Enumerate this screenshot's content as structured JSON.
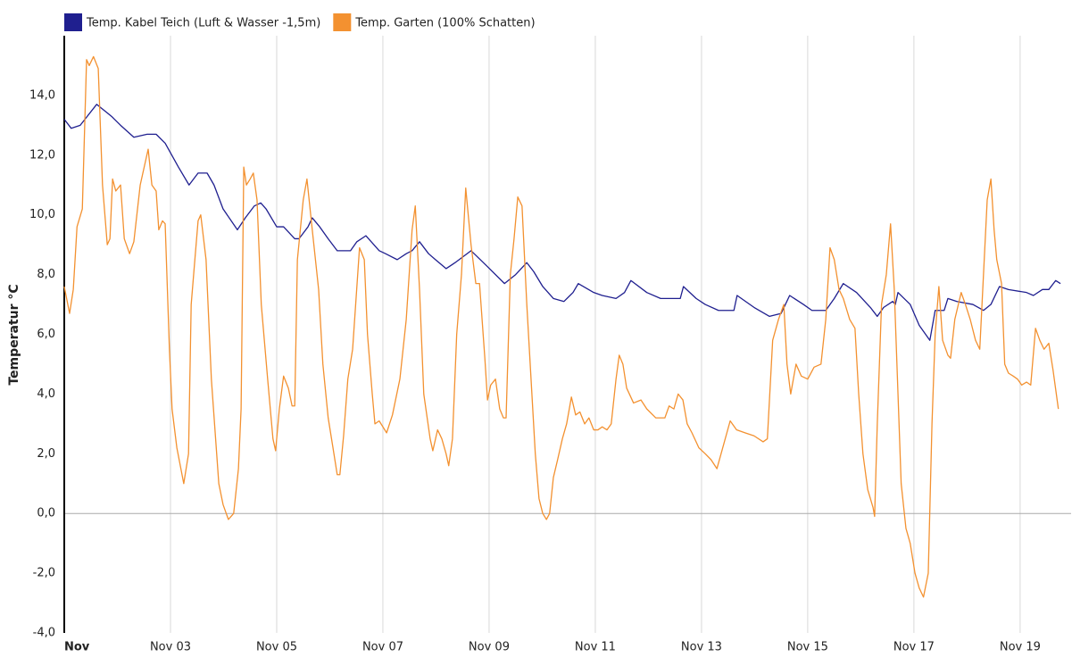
{
  "chart_data": {
    "type": "line",
    "y_label": "Temperatur °C",
    "legend": "top-left",
    "grid": "x",
    "xlim": [
      1,
      19.96
    ],
    "xticks": [
      {
        "value": 1,
        "label": "Nov"
      },
      {
        "value": 3,
        "label": "Nov 03"
      },
      {
        "value": 5,
        "label": "Nov 05"
      },
      {
        "value": 7,
        "label": "Nov 07"
      },
      {
        "value": 9,
        "label": "Nov 09"
      },
      {
        "value": 11,
        "label": "Nov 11"
      },
      {
        "value": 13,
        "label": "Nov 13"
      },
      {
        "value": 15,
        "label": "Nov 15"
      },
      {
        "value": 17,
        "label": "Nov 17"
      },
      {
        "value": 19,
        "label": "Nov 19"
      }
    ],
    "ylim": [
      -4,
      16
    ],
    "yticks": [
      {
        "value": -4,
        "label": "-4,0"
      },
      {
        "value": -2,
        "label": "-2,0"
      },
      {
        "value": 0,
        "label": "0,0"
      },
      {
        "value": 2,
        "label": "2,0"
      },
      {
        "value": 4,
        "label": "4,0"
      },
      {
        "value": 6,
        "label": "6,0"
      },
      {
        "value": 8,
        "label": "8,0"
      },
      {
        "value": 10,
        "label": "10,0"
      },
      {
        "value": 12,
        "label": "12,0"
      },
      {
        "value": 14,
        "label": "14,0"
      }
    ],
    "series": [
      {
        "name": "Temp. Kabel Teich (Luft & Wasser -1,5m)",
        "color": "#1f1f8f",
        "x": [
          1.0,
          1.13,
          1.3,
          1.61,
          1.89,
          2.06,
          2.31,
          2.56,
          2.73,
          2.9,
          3.15,
          3.35,
          3.52,
          3.69,
          3.82,
          3.99,
          4.26,
          4.41,
          4.58,
          4.7,
          4.8,
          5.0,
          5.13,
          5.34,
          5.42,
          5.59,
          5.67,
          5.81,
          5.97,
          6.14,
          6.39,
          6.51,
          6.68,
          6.93,
          7.05,
          7.27,
          7.44,
          7.55,
          7.69,
          7.86,
          7.99,
          8.19,
          8.36,
          8.66,
          8.95,
          9.29,
          9.5,
          9.71,
          9.84,
          10.01,
          10.21,
          10.41,
          10.58,
          10.68,
          10.97,
          11.13,
          11.39,
          11.55,
          11.67,
          11.97,
          12.23,
          12.6,
          12.66,
          12.9,
          13.07,
          13.32,
          13.61,
          13.67,
          13.99,
          14.28,
          14.5,
          14.66,
          14.92,
          15.08,
          15.34,
          15.5,
          15.67,
          15.92,
          16.18,
          16.31,
          16.43,
          16.6,
          16.65,
          16.7,
          16.93,
          17.1,
          17.3,
          17.4,
          17.57,
          17.64,
          17.81,
          18.11,
          18.31,
          18.45,
          18.61,
          18.78,
          19.12,
          19.25,
          19.42,
          19.54,
          19.67,
          19.76
        ],
        "values": [
          13.2,
          12.9,
          13.0,
          13.7,
          13.3,
          13.0,
          12.6,
          12.7,
          12.7,
          12.4,
          11.6,
          11.0,
          11.4,
          11.4,
          11.0,
          10.2,
          9.5,
          9.9,
          10.3,
          10.4,
          10.2,
          9.6,
          9.6,
          9.2,
          9.2,
          9.6,
          9.9,
          9.6,
          9.2,
          8.8,
          8.8,
          9.1,
          9.3,
          8.8,
          8.7,
          8.5,
          8.7,
          8.8,
          9.1,
          8.7,
          8.5,
          8.2,
          8.4,
          8.8,
          8.3,
          7.7,
          8.0,
          8.4,
          8.1,
          7.6,
          7.2,
          7.1,
          7.4,
          7.7,
          7.4,
          7.3,
          7.2,
          7.4,
          7.8,
          7.4,
          7.2,
          7.2,
          7.6,
          7.2,
          7.0,
          6.8,
          6.8,
          7.3,
          6.9,
          6.6,
          6.7,
          7.3,
          7.0,
          6.8,
          6.8,
          7.2,
          7.7,
          7.4,
          6.9,
          6.6,
          6.9,
          7.1,
          7.0,
          7.4,
          7.0,
          6.3,
          5.8,
          6.8,
          6.8,
          7.2,
          7.1,
          7.0,
          6.8,
          7.0,
          7.6,
          7.5,
          7.4,
          7.3,
          7.5,
          7.5,
          7.8,
          7.7
        ]
      },
      {
        "name": "Temp. Garten (100% Schatten)",
        "color": "#f39130",
        "x": [
          1.0,
          1.1,
          1.17,
          1.24,
          1.34,
          1.42,
          1.47,
          1.55,
          1.64,
          1.72,
          1.81,
          1.86,
          1.91,
          1.97,
          2.06,
          2.13,
          2.23,
          2.31,
          2.43,
          2.58,
          2.65,
          2.73,
          2.78,
          2.85,
          2.9,
          2.98,
          3.03,
          3.12,
          3.25,
          3.34,
          3.39,
          3.45,
          3.52,
          3.57,
          3.67,
          3.77,
          3.91,
          3.99,
          4.09,
          4.19,
          4.28,
          4.33,
          4.38,
          4.43,
          4.5,
          4.56,
          4.63,
          4.71,
          4.83,
          4.93,
          4.98,
          5.05,
          5.13,
          5.22,
          5.29,
          5.34,
          5.39,
          5.5,
          5.57,
          5.67,
          5.79,
          5.87,
          5.97,
          6.06,
          6.14,
          6.19,
          6.26,
          6.34,
          6.43,
          6.56,
          6.65,
          6.71,
          6.8,
          6.85,
          6.93,
          7.07,
          7.18,
          7.32,
          7.44,
          7.55,
          7.61,
          7.69,
          7.77,
          7.89,
          7.94,
          8.03,
          8.11,
          8.19,
          8.24,
          8.31,
          8.39,
          8.48,
          8.56,
          8.66,
          8.75,
          8.82,
          8.92,
          8.97,
          9.03,
          9.12,
          9.2,
          9.27,
          9.32,
          9.4,
          9.47,
          9.54,
          9.62,
          9.71,
          9.79,
          9.87,
          9.94,
          10.01,
          10.08,
          10.14,
          10.21,
          10.29,
          10.38,
          10.46,
          10.55,
          10.63,
          10.71,
          10.8,
          10.88,
          10.97,
          11.05,
          11.13,
          11.22,
          11.3,
          11.39,
          11.45,
          11.52,
          11.59,
          11.72,
          11.86,
          11.97,
          12.14,
          12.31,
          12.39,
          12.48,
          12.56,
          12.65,
          12.73,
          12.82,
          12.95,
          13.07,
          13.18,
          13.29,
          13.4,
          13.54,
          13.66,
          13.82,
          13.99,
          14.16,
          14.24,
          14.34,
          14.45,
          14.55,
          14.61,
          14.68,
          14.78,
          14.88,
          15.0,
          15.12,
          15.25,
          15.34,
          15.42,
          15.5,
          15.59,
          15.67,
          15.79,
          15.89,
          15.96,
          16.04,
          16.13,
          16.23,
          16.26,
          16.31,
          16.39,
          16.48,
          16.56,
          16.63,
          16.7,
          16.76,
          16.85,
          16.93,
          17.02,
          17.1,
          17.18,
          17.27,
          17.34,
          17.4,
          17.47,
          17.54,
          17.64,
          17.69,
          17.77,
          17.89,
          17.97,
          18.06,
          18.16,
          18.24,
          18.31,
          18.38,
          18.45,
          18.51,
          18.56,
          18.65,
          18.71,
          18.78,
          18.87,
          18.95,
          19.03,
          19.12,
          19.2,
          19.29,
          19.37,
          19.45,
          19.54,
          19.62,
          19.72
        ],
        "values": [
          7.6,
          6.7,
          7.5,
          9.6,
          10.2,
          15.2,
          15.0,
          15.3,
          14.9,
          11.0,
          9.0,
          9.2,
          11.2,
          10.8,
          11.0,
          9.2,
          8.7,
          9.1,
          11.0,
          12.2,
          11.0,
          10.8,
          9.5,
          9.8,
          9.7,
          5.5,
          3.5,
          2.2,
          1.0,
          2.0,
          7.0,
          8.3,
          9.8,
          10.0,
          8.5,
          4.5,
          1.0,
          0.3,
          -0.2,
          0.0,
          1.5,
          3.5,
          11.6,
          11.0,
          11.2,
          11.4,
          10.5,
          7.0,
          4.5,
          2.5,
          2.1,
          3.5,
          4.6,
          4.2,
          3.6,
          3.6,
          8.5,
          10.5,
          11.2,
          9.5,
          7.5,
          5.0,
          3.2,
          2.2,
          1.3,
          1.3,
          2.6,
          4.5,
          5.5,
          8.9,
          8.5,
          6.0,
          4.0,
          3.0,
          3.1,
          2.7,
          3.3,
          4.5,
          6.5,
          9.5,
          10.3,
          7.5,
          4.0,
          2.5,
          2.1,
          2.8,
          2.5,
          2.0,
          1.6,
          2.5,
          6.0,
          8.0,
          10.9,
          9.0,
          7.7,
          7.7,
          5.2,
          3.8,
          4.3,
          4.5,
          3.5,
          3.2,
          3.2,
          8.0,
          9.2,
          10.6,
          10.3,
          7.0,
          4.5,
          2.0,
          0.5,
          0.0,
          -0.2,
          0.0,
          1.2,
          1.8,
          2.5,
          3.0,
          3.9,
          3.3,
          3.4,
          3.0,
          3.2,
          2.8,
          2.8,
          2.9,
          2.8,
          3.0,
          4.5,
          5.3,
          5.0,
          4.2,
          3.7,
          3.8,
          3.5,
          3.2,
          3.2,
          3.6,
          3.5,
          4.0,
          3.8,
          3.0,
          2.7,
          2.2,
          2.0,
          1.8,
          1.5,
          2.2,
          3.1,
          2.8,
          2.7,
          2.6,
          2.4,
          2.5,
          5.8,
          6.5,
          7.0,
          5.0,
          4.0,
          5.0,
          4.6,
          4.5,
          4.9,
          5.0,
          6.5,
          8.9,
          8.5,
          7.5,
          7.2,
          6.5,
          6.2,
          4.0,
          2.0,
          0.8,
          0.2,
          -0.1,
          3.0,
          7.0,
          8.0,
          9.7,
          7.5,
          4.0,
          1.0,
          -0.5,
          -1.0,
          -2.0,
          -2.5,
          -2.8,
          -2.0,
          3.0,
          6.0,
          7.6,
          5.8,
          5.3,
          5.2,
          6.5,
          7.4,
          7.0,
          6.5,
          5.8,
          5.5,
          8.0,
          10.5,
          11.2,
          9.5,
          8.5,
          7.7,
          5.0,
          4.7,
          4.6,
          4.5,
          4.3,
          4.4,
          4.3,
          6.2,
          5.8,
          5.5,
          5.7,
          4.8,
          3.5
        ]
      }
    ]
  }
}
